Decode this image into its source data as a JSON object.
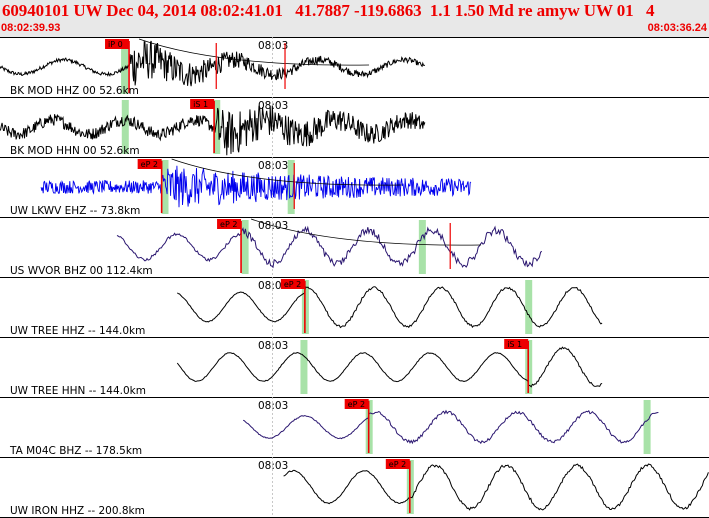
{
  "header": {
    "title": "60940101 UW Dec 04, 2014 08:02:41.01   41.7887 -119.6863  1.1 1.50 Md re amyw UW 01   4",
    "start_time": "08:02:39.93",
    "end_time": "08:03:36.24"
  },
  "colors": {
    "header_bg": "#e8e8e8",
    "header_text": "#ee0000",
    "trace_black": "#000000",
    "trace_blue": "#0000ee",
    "trace_purple": "#2a1670",
    "pick_red": "#ee0000",
    "marker_green": "#a8e2a8"
  },
  "time_tick_label": "08:03",
  "traces": [
    {
      "label": "BK MOD HHZ 00 52.6km",
      "color": "black",
      "kind": "quake",
      "pick": "iP 0",
      "pick_pos": 0.182,
      "extra_red": [
        0.305,
        0.402
      ],
      "green": [
        0.175
      ],
      "onset": 0.182,
      "env_start": 0.0,
      "env_end": 0.6,
      "amp": 0.78,
      "noise": 0.06,
      "period": 0.06,
      "decay": 0.12,
      "curve": true
    },
    {
      "label": "BK MOD HHN 00 52.6km",
      "color": "black",
      "kind": "quake",
      "pick": "iS 1",
      "pick_pos": 0.302,
      "extra_red": [],
      "green": [
        0.176,
        0.305
      ],
      "onset": 0.305,
      "env_start": 0.0,
      "env_end": 0.6,
      "amp": 0.65,
      "noise": 0.2,
      "period": 0.05,
      "decay": 0.14,
      "curve": false
    },
    {
      "label": "UW LKWV EHZ -- 73.8km",
      "color": "blue",
      "kind": "noise",
      "pick": "eP 2",
      "pick_pos": 0.228,
      "extra_red": [
        0.415
      ],
      "green": [
        0.232,
        0.41
      ],
      "onset": 0.228,
      "env_start": 0.058,
      "env_end": 0.665,
      "amp": 0.55,
      "noise": 0.22,
      "period": 0.02,
      "decay": 0.2,
      "curve": true
    },
    {
      "label": "US WVOR BHZ 00 112.4km",
      "color": "purple",
      "kind": "wave",
      "pick": "eP 2",
      "pick_pos": 0.34,
      "extra_red": [
        0.635
      ],
      "green": [
        0.345,
        0.595
      ],
      "onset": 0.34,
      "env_start": 0.165,
      "env_end": 0.765,
      "amp": 0.62,
      "noise": 0.05,
      "period": 0.09,
      "decay": 0.5,
      "curve": true
    },
    {
      "label": "UW TREE HHZ -- 144.0km",
      "color": "black",
      "kind": "wave",
      "pick": "eP 2",
      "pick_pos": 0.43,
      "extra_red": [],
      "green": [
        0.43,
        0.745
      ],
      "onset": 0.43,
      "env_start": 0.25,
      "env_end": 0.85,
      "amp": 0.72,
      "noise": 0.015,
      "period": 0.094,
      "decay": 1.0,
      "curve": false
    },
    {
      "label": "UW TREE HHN -- 144.0km",
      "color": "black",
      "kind": "wave",
      "pick": "iS 1",
      "pick_pos": 0.745,
      "extra_red": [],
      "green": [
        0.428,
        0.745
      ],
      "onset": 0.745,
      "env_start": 0.25,
      "env_end": 0.85,
      "amp": 0.7,
      "noise": 0.015,
      "period": 0.094,
      "decay": 1.0,
      "curve": false
    },
    {
      "label": "TA M04C BHZ -- 178.5km",
      "color": "purple",
      "kind": "wave",
      "pick": "eP 2",
      "pick_pos": 0.52,
      "extra_red": [],
      "green": [
        0.52,
        0.912
      ],
      "onset": 0.52,
      "env_start": 0.343,
      "env_end": 0.93,
      "amp": 0.55,
      "noise": 0.02,
      "period": 0.1,
      "decay": 1.0,
      "curve": false
    },
    {
      "label": "UW IRON HHZ -- 200.8km",
      "color": "black",
      "kind": "wave",
      "pick": "eP 2",
      "pick_pos": 0.578,
      "extra_red": [],
      "green": [
        0.578
      ],
      "onset": 0.578,
      "env_start": 0.4,
      "env_end": 1.0,
      "amp": 0.8,
      "noise": 0.02,
      "period": 0.1,
      "decay": 1.0,
      "curve": false
    }
  ]
}
